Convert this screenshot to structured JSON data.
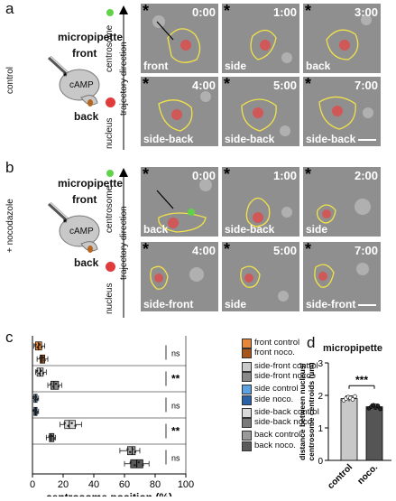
{
  "panel_a": {
    "letter": "a",
    "micropipette": "micropipette",
    "front": "front",
    "back": "back",
    "condition": "control",
    "camp": "cAMP",
    "centrosome": "centrosome",
    "nucleus": "nucleus",
    "trajectory": "trajectory direction",
    "tiles": [
      {
        "time": "0:00",
        "label": "front"
      },
      {
        "time": "1:00",
        "label": "side"
      },
      {
        "time": "3:00",
        "label": "back"
      },
      {
        "time": "4:00",
        "label": "side-back"
      },
      {
        "time": "5:00",
        "label": "side-back"
      },
      {
        "time": "7:00",
        "label": "side-back"
      }
    ]
  },
  "panel_b": {
    "letter": "b",
    "micropipette": "micropipette",
    "front": "front",
    "back": "back",
    "condition": "+ nocodazole",
    "camp": "cAMP",
    "centrosome": "centrosome",
    "nucleus": "nucleus",
    "trajectory": "trajectory direction",
    "tiles": [
      {
        "time": "0:00",
        "label": "back"
      },
      {
        "time": "1:00",
        "label": "side-back"
      },
      {
        "time": "2:00",
        "label": "side"
      },
      {
        "time": "4:00",
        "label": "side-front"
      },
      {
        "time": "5:00",
        "label": "side"
      },
      {
        "time": "7:00",
        "label": "side-front"
      }
    ]
  },
  "panel_c": {
    "letter": "c",
    "legend": [
      {
        "label": "front control",
        "color": "#e8873a"
      },
      {
        "label": "front noco.",
        "color": "#a8551b"
      },
      {
        "label": "side-front control",
        "color": "#c9c9c9"
      },
      {
        "label": "side-front noco.",
        "color": "#8a8a8a"
      },
      {
        "label": "side control",
        "color": "#5aa3e0"
      },
      {
        "label": "side noco.",
        "color": "#2a62a8"
      },
      {
        "label": "side-back control",
        "color": "#d9d9d9"
      },
      {
        "label": "side-back noco.",
        "color": "#7a7a7a"
      },
      {
        "label": "back control",
        "color": "#9a9a9a"
      },
      {
        "label": "back noco.",
        "color": "#5a5a5a"
      }
    ],
    "significance": [
      "ns",
      "**",
      "ns",
      "**",
      "ns"
    ]
  },
  "panel_d": {
    "letter": "d",
    "title": "micropipette",
    "significance": "***"
  },
  "chart_data": [
    {
      "type": "box",
      "xlabel": "centrosome position (%)",
      "xlim": [
        0,
        100
      ],
      "xticks": [
        0,
        20,
        40,
        60,
        80,
        100
      ],
      "series": [
        {
          "name": "front control",
          "min": 1,
          "q1": 2,
          "median": 4,
          "q3": 6,
          "max": 8
        },
        {
          "name": "front noco.",
          "min": 3,
          "q1": 5,
          "median": 6,
          "q3": 8,
          "max": 10
        },
        {
          "name": "side-front control",
          "min": 2,
          "q1": 3,
          "median": 5,
          "q3": 7,
          "max": 9
        },
        {
          "name": "side-front noco.",
          "min": 10,
          "q1": 12,
          "median": 14,
          "q3": 17,
          "max": 19
        },
        {
          "name": "side control",
          "min": 0,
          "q1": 1,
          "median": 2,
          "q3": 3,
          "max": 4
        },
        {
          "name": "side noco.",
          "min": 0,
          "q1": 1,
          "median": 2,
          "q3": 3,
          "max": 4
        },
        {
          "name": "side-back control",
          "min": 18,
          "q1": 21,
          "median": 24,
          "q3": 28,
          "max": 32
        },
        {
          "name": "side-back noco.",
          "min": 9,
          "q1": 11,
          "median": 12,
          "q3": 14,
          "max": 15
        },
        {
          "name": "back control",
          "min": 57,
          "q1": 62,
          "median": 65,
          "q3": 67,
          "max": 70
        },
        {
          "name": "back noco.",
          "min": 60,
          "q1": 64,
          "median": 68,
          "q3": 72,
          "max": 76
        }
      ]
    },
    {
      "type": "bar",
      "categories": [
        "control",
        "noco."
      ],
      "values": [
        1.9,
        1.65
      ],
      "errors": [
        0.08,
        0.08
      ],
      "ylabel": "distance between nucleus/ centrosome centroids (µm)",
      "ylim": [
        0,
        3
      ],
      "yticks": [
        0,
        1,
        2,
        3
      ],
      "colors": [
        "#c8c8c8",
        "#555555"
      ],
      "points": [
        [
          1.85,
          1.9,
          1.95,
          1.92,
          1.88,
          1.97
        ],
        [
          1.6,
          1.65,
          1.7,
          1.62,
          1.68,
          1.58
        ]
      ]
    }
  ]
}
